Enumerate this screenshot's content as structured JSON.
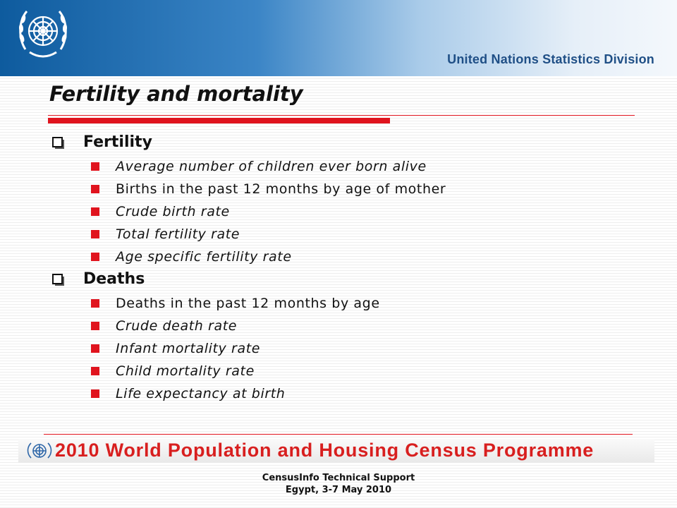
{
  "header": {
    "org_name": "United Nations Statistics Division",
    "emblem_icon": "un-emblem-icon",
    "gradient_colors": [
      "#0e5b9e",
      "#3b85c6",
      "#a9cbe9",
      "#f4f8fc"
    ]
  },
  "slide": {
    "title": "Fertility and mortality",
    "accent_color": "#e0141e",
    "sections": [
      {
        "heading": "Fertility",
        "bullet_icon": "checkbox-bullet-icon",
        "items": [
          {
            "text": "Average number of children ever born alive",
            "italic": true
          },
          {
            "text": "Births in the past 12 months by age of mother",
            "italic": false
          },
          {
            "text": "Crude birth rate",
            "italic": true
          },
          {
            "text": "Total fertility rate",
            "italic": true
          },
          {
            "text": "Age specific fertility rate",
            "italic": true
          }
        ]
      },
      {
        "heading": "Deaths",
        "bullet_icon": "checkbox-bullet-icon",
        "items": [
          {
            "text": "Deaths in the past 12 months by age",
            "italic": false
          },
          {
            "text": "Crude death rate",
            "italic": true
          },
          {
            "text": "Infant mortality rate",
            "italic": true
          },
          {
            "text": "Child mortality rate",
            "italic": true
          },
          {
            "text": "Life expectancy at birth",
            "italic": true
          }
        ]
      }
    ]
  },
  "banner": {
    "text": "2010 World Population and Housing Census Programme",
    "color": "#d81f1f",
    "emblem_icon": "census-emblem-icon"
  },
  "footer": {
    "line1": "CensusInfo Technical Support",
    "line2": "Egypt, 3-7 May 2010"
  }
}
